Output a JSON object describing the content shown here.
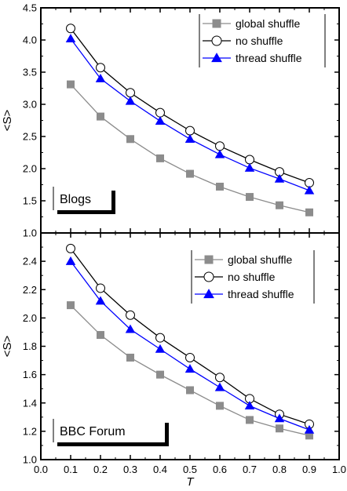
{
  "chart_data": [
    {
      "type": "line",
      "panel_label": "Blogs",
      "ylabel": "<S>",
      "xlabel": "",
      "xlim": [
        0.0,
        1.0
      ],
      "ylim": [
        1.0,
        4.5
      ],
      "yticks": [
        "1.0",
        "1.5",
        "2.0",
        "2.5",
        "3.0",
        "3.5",
        "4.0",
        "4.5"
      ],
      "x": [
        0.1,
        0.2,
        0.3,
        0.4,
        0.5,
        0.6,
        0.7,
        0.8,
        0.9
      ],
      "legend_position": "top-right",
      "series": [
        {
          "name": "global shuffle",
          "marker": "square",
          "color": "#8c8c8c",
          "values": [
            3.31,
            2.81,
            2.46,
            2.16,
            1.92,
            1.72,
            1.56,
            1.43,
            1.32
          ]
        },
        {
          "name": "no shuffle",
          "marker": "circle",
          "color": "#000000",
          "values": [
            4.18,
            3.57,
            3.18,
            2.87,
            2.59,
            2.35,
            2.14,
            1.95,
            1.78
          ]
        },
        {
          "name": "thread shuffle",
          "marker": "triangle",
          "color": "#0000ff",
          "values": [
            4.02,
            3.4,
            3.05,
            2.74,
            2.46,
            2.22,
            2.01,
            1.84,
            1.66
          ]
        }
      ]
    },
    {
      "type": "line",
      "panel_label": "BBC Forum",
      "ylabel": "<S>",
      "xlabel": "T",
      "xlim": [
        0.0,
        1.0
      ],
      "ylim": [
        1.0,
        2.6
      ],
      "yticks": [
        "1.0",
        "1.2",
        "1.4",
        "1.6",
        "1.8",
        "2.0",
        "2.2",
        "2.4"
      ],
      "xticks": [
        "0.0",
        "0.1",
        "0.2",
        "0.3",
        "0.4",
        "0.5",
        "0.6",
        "0.7",
        "0.8",
        "0.9",
        "1.0"
      ],
      "x": [
        0.1,
        0.2,
        0.3,
        0.4,
        0.5,
        0.6,
        0.7,
        0.8,
        0.9
      ],
      "legend_position": "top-right",
      "series": [
        {
          "name": "global shuffle",
          "marker": "square",
          "color": "#8c8c8c",
          "values": [
            2.09,
            1.88,
            1.72,
            1.6,
            1.49,
            1.38,
            1.28,
            1.22,
            1.17
          ]
        },
        {
          "name": "no shuffle",
          "marker": "circle",
          "color": "#000000",
          "values": [
            2.49,
            2.21,
            2.02,
            1.86,
            1.72,
            1.58,
            1.43,
            1.32,
            1.25
          ]
        },
        {
          "name": "thread shuffle",
          "marker": "triangle",
          "color": "#0000ff",
          "values": [
            2.4,
            2.12,
            1.92,
            1.78,
            1.64,
            1.51,
            1.38,
            1.29,
            1.21
          ]
        }
      ]
    }
  ]
}
